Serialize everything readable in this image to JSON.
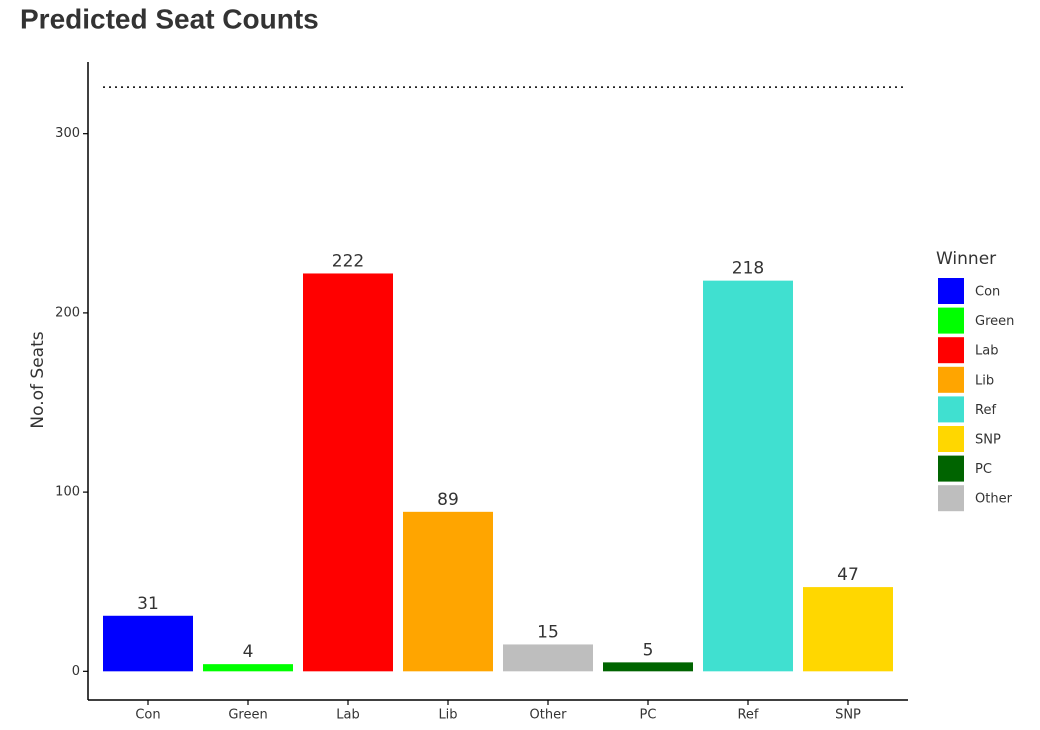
{
  "chart_data": {
    "type": "bar",
    "title": "Predicted Seat Counts",
    "ylabel": "No.of Seats",
    "categories": [
      "Con",
      "Green",
      "Lab",
      "Lib",
      "Other",
      "PC",
      "Ref",
      "SNP"
    ],
    "values": [
      31,
      4,
      222,
      89,
      15,
      5,
      218,
      47
    ],
    "colors": [
      "#0000ff",
      "#00ff00",
      "#ff0000",
      "#ffa500",
      "#bebebe",
      "#006400",
      "#40e0d0",
      "#ffd700"
    ],
    "reference_line": 326,
    "ylim": [
      -16,
      340
    ],
    "yticks": [
      0,
      100,
      200,
      300
    ],
    "grid": false,
    "legend": {
      "title": "Winner",
      "position": "right",
      "entries": [
        "Con",
        "Green",
        "Lab",
        "Lib",
        "Ref",
        "SNP",
        "PC",
        "Other"
      ]
    }
  }
}
